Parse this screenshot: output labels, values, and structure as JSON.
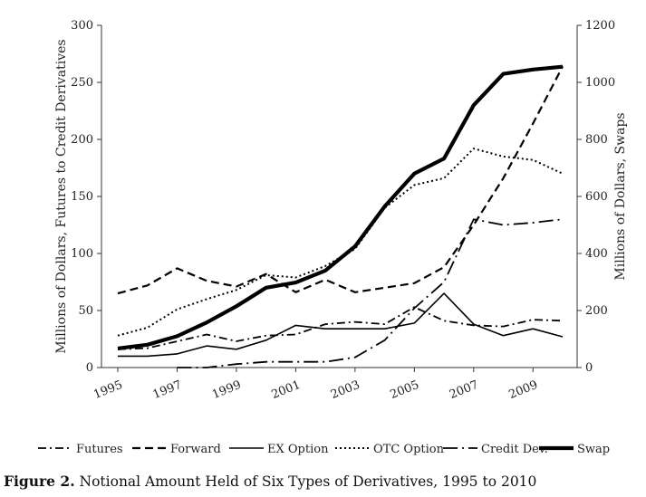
{
  "chart_data": {
    "type": "line",
    "title": "Notional Amount Held of Six Types of Derivatives, 1995 to 2010",
    "x": [
      1995,
      1996,
      1997,
      1998,
      1999,
      2000,
      2001,
      2002,
      2003,
      2004,
      2005,
      2006,
      2007,
      2008,
      2009,
      2010
    ],
    "x_ticks": [
      "1995",
      "1997",
      "1999",
      "2001",
      "2003",
      "2005",
      "2007",
      "2009"
    ],
    "y_left_label": "Millions of Dollars, Futures to Credit Derivatives",
    "y_left_ticks": [
      "0",
      "50",
      "100",
      "150",
      "200",
      "250",
      "300"
    ],
    "ylim_left": [
      0,
      300
    ],
    "y_right_label": "Millions of Dollars, Swaps",
    "y_right_ticks": [
      "0",
      "200",
      "400",
      "600",
      "800",
      "1000",
      "1200"
    ],
    "ylim_right": [
      0,
      1200
    ],
    "series": [
      {
        "name": "Futures",
        "style": "dashdot",
        "axis": "left",
        "values": [
          16,
          17,
          23,
          29,
          23,
          28,
          29,
          38,
          40,
          38,
          53,
          41,
          37,
          36,
          42,
          41
        ]
      },
      {
        "name": "Forward",
        "style": "dashed",
        "axis": "left",
        "values": [
          65,
          72,
          87,
          76,
          71,
          82,
          66,
          77,
          66,
          70,
          74,
          88,
          125,
          166,
          214,
          264
        ]
      },
      {
        "name": "EX Option",
        "style": "solid",
        "axis": "left",
        "values": [
          10,
          10,
          12,
          19,
          16,
          24,
          37,
          34,
          34,
          34,
          39,
          65,
          38,
          28,
          34,
          27
        ]
      },
      {
        "name": "OTC Option",
        "style": "dotted",
        "axis": "left",
        "values": [
          28,
          35,
          51,
          60,
          68,
          81,
          79,
          89,
          104,
          140,
          160,
          166,
          192,
          185,
          182,
          170
        ]
      },
      {
        "name": "Credit Dev.",
        "style": "longdashdot",
        "axis": "left",
        "values": [
          null,
          null,
          0,
          0,
          3,
          5,
          5,
          5,
          9,
          24,
          52,
          75,
          130,
          125,
          127,
          130
        ]
      },
      {
        "name": "Swap",
        "style": "thick",
        "axis": "right",
        "values": [
          67,
          80,
          110,
          158,
          215,
          280,
          298,
          340,
          425,
          565,
          680,
          733,
          920,
          1030,
          1045,
          1055
        ]
      }
    ]
  },
  "caption": {
    "label": "Figure 2.",
    "text": " Notional Amount Held of Six Types of Derivatives, 1995 to 2010"
  }
}
